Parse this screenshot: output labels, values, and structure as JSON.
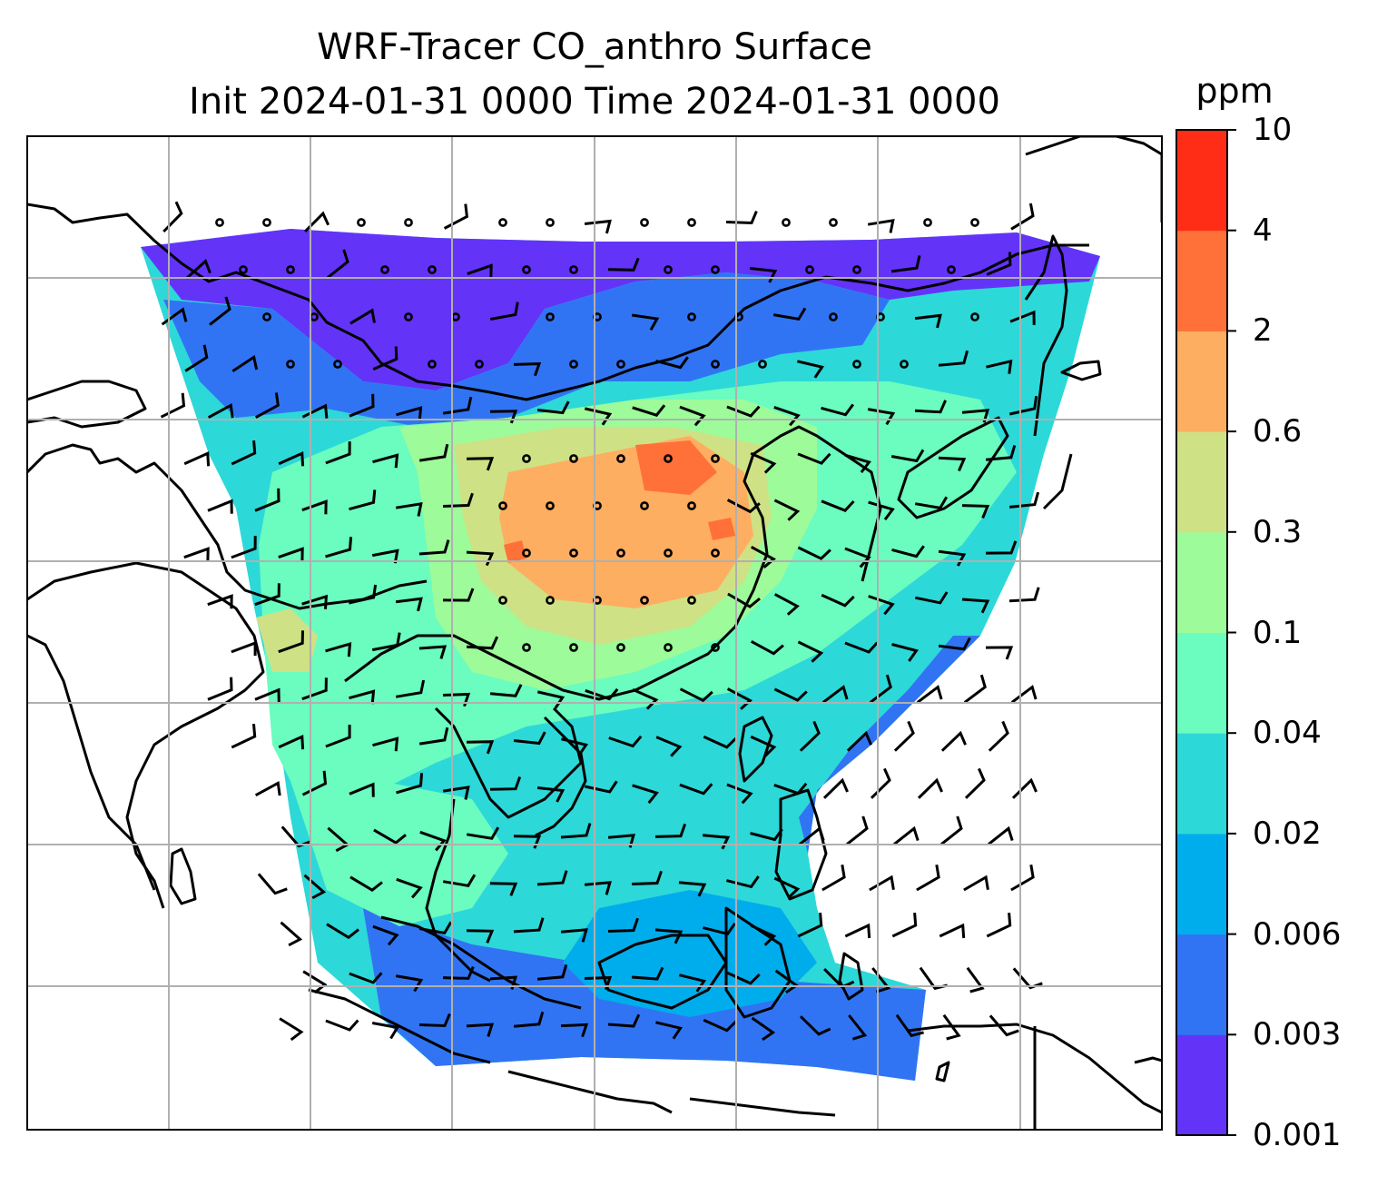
{
  "title": {
    "line1": "WRF-Tracer CO_anthro Surface",
    "line2": "Init 2024-01-31 0000 Time 2024-01-31 0000"
  },
  "colorbar": {
    "unit": "ppm",
    "levels": [
      "0.001",
      "0.003",
      "0.006",
      "0.02",
      "0.04",
      "0.1",
      "0.3",
      "0.6",
      "2",
      "4",
      "10"
    ],
    "colors": [
      "#6433f8",
      "#3174f3",
      "#00adec",
      "#2dd8d8",
      "#6bfcbf",
      "#9dfb9a",
      "#cfe185",
      "#feae60",
      "#ff7138",
      "#ff2d16"
    ]
  },
  "map": {
    "variable": "CO_anthro",
    "overlays": [
      "wind-barbs",
      "calm-circles",
      "coastlines",
      "gridlines"
    ],
    "grid_color": "#b0b0b0",
    "coast_color": "#000000"
  }
}
